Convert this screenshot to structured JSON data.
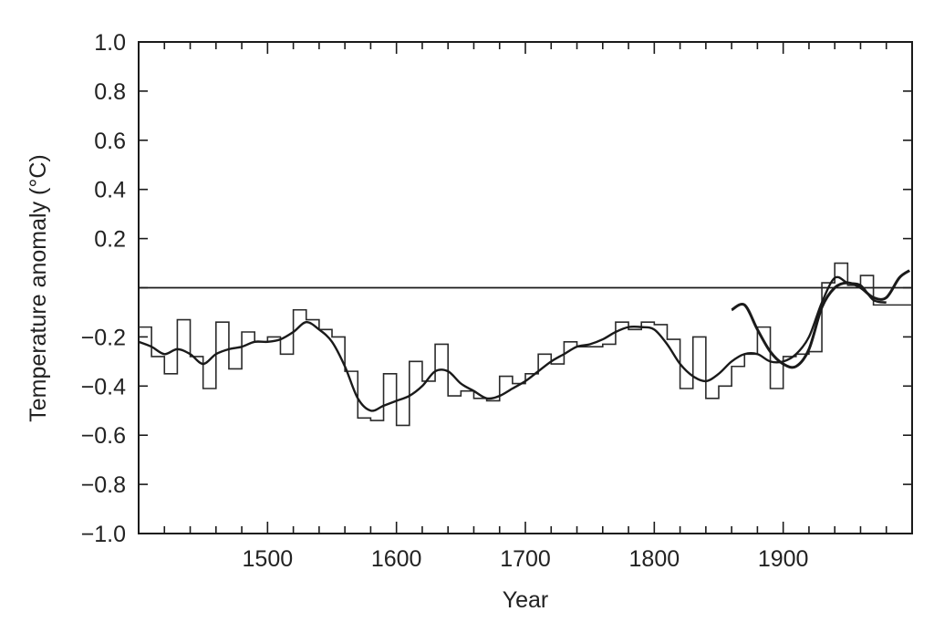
{
  "chart_data": {
    "type": "line",
    "xlabel": "Year",
    "ylabel": "Temperature anomaly (°C)",
    "xlim": [
      1400,
      2000
    ],
    "ylim": [
      -1.0,
      1.0
    ],
    "x_ticks": [
      1500,
      1600,
      1700,
      1800,
      1900
    ],
    "x_tick_labels": [
      "1500",
      "1600",
      "1700",
      "1800",
      "1900"
    ],
    "y_ticks": [
      1.0,
      0.8,
      0.6,
      0.4,
      0.2,
      -0.2,
      -0.4,
      -0.6,
      -0.8,
      -1.0
    ],
    "y_tick_labels": [
      "1.0",
      "0.8",
      "0.6",
      "0.4",
      "0.2",
      "−0.2",
      "−0.4",
      "−0.6",
      "−0.8",
      "−1.0"
    ],
    "reference_line": 0,
    "grid": false,
    "series": [
      {
        "style": "step",
        "values": [
          [
            1400,
            -0.16
          ],
          [
            1410,
            -0.28
          ],
          [
            1420,
            -0.35
          ],
          [
            1430,
            -0.13
          ],
          [
            1440,
            -0.28
          ],
          [
            1450,
            -0.41
          ],
          [
            1460,
            -0.14
          ],
          [
            1470,
            -0.33
          ],
          [
            1480,
            -0.18
          ],
          [
            1490,
            -0.22
          ],
          [
            1500,
            -0.2
          ],
          [
            1510,
            -0.27
          ],
          [
            1520,
            -0.09
          ],
          [
            1530,
            -0.13
          ],
          [
            1540,
            -0.17
          ],
          [
            1550,
            -0.2
          ],
          [
            1560,
            -0.34
          ],
          [
            1570,
            -0.53
          ],
          [
            1580,
            -0.54
          ],
          [
            1590,
            -0.35
          ],
          [
            1600,
            -0.56
          ],
          [
            1610,
            -0.3
          ],
          [
            1620,
            -0.38
          ],
          [
            1630,
            -0.23
          ],
          [
            1640,
            -0.44
          ],
          [
            1650,
            -0.42
          ],
          [
            1660,
            -0.45
          ],
          [
            1670,
            -0.46
          ],
          [
            1680,
            -0.36
          ],
          [
            1690,
            -0.39
          ],
          [
            1700,
            -0.35
          ],
          [
            1710,
            -0.27
          ],
          [
            1720,
            -0.31
          ],
          [
            1730,
            -0.22
          ],
          [
            1740,
            -0.24
          ],
          [
            1750,
            -0.24
          ],
          [
            1760,
            -0.23
          ],
          [
            1770,
            -0.14
          ],
          [
            1780,
            -0.17
          ],
          [
            1790,
            -0.14
          ],
          [
            1800,
            -0.15
          ],
          [
            1810,
            -0.21
          ],
          [
            1820,
            -0.41
          ],
          [
            1830,
            -0.2
          ],
          [
            1840,
            -0.45
          ],
          [
            1850,
            -0.4
          ],
          [
            1860,
            -0.32
          ],
          [
            1870,
            -0.27
          ],
          [
            1880,
            -0.16
          ],
          [
            1890,
            -0.41
          ],
          [
            1900,
            -0.28
          ],
          [
            1910,
            -0.27
          ],
          [
            1920,
            -0.26
          ],
          [
            1930,
            0.02
          ],
          [
            1940,
            0.1
          ],
          [
            1950,
            0.01
          ],
          [
            1960,
            0.05
          ],
          [
            1970,
            -0.07
          ],
          [
            1980,
            -0.07
          ],
          [
            1990,
            -0.07
          ]
        ]
      },
      {
        "style": "smooth",
        "values": [
          [
            1400,
            -0.22
          ],
          [
            1410,
            -0.24
          ],
          [
            1420,
            -0.27
          ],
          [
            1430,
            -0.25
          ],
          [
            1440,
            -0.27
          ],
          [
            1450,
            -0.31
          ],
          [
            1460,
            -0.27
          ],
          [
            1470,
            -0.25
          ],
          [
            1480,
            -0.24
          ],
          [
            1490,
            -0.22
          ],
          [
            1500,
            -0.22
          ],
          [
            1510,
            -0.21
          ],
          [
            1520,
            -0.18
          ],
          [
            1530,
            -0.14
          ],
          [
            1540,
            -0.17
          ],
          [
            1550,
            -0.22
          ],
          [
            1560,
            -0.32
          ],
          [
            1570,
            -0.45
          ],
          [
            1580,
            -0.5
          ],
          [
            1590,
            -0.48
          ],
          [
            1600,
            -0.46
          ],
          [
            1610,
            -0.44
          ],
          [
            1620,
            -0.4
          ],
          [
            1630,
            -0.34
          ],
          [
            1640,
            -0.34
          ],
          [
            1650,
            -0.39
          ],
          [
            1660,
            -0.42
          ],
          [
            1670,
            -0.45
          ],
          [
            1680,
            -0.44
          ],
          [
            1690,
            -0.41
          ],
          [
            1700,
            -0.38
          ],
          [
            1710,
            -0.34
          ],
          [
            1720,
            -0.3
          ],
          [
            1730,
            -0.27
          ],
          [
            1740,
            -0.24
          ],
          [
            1750,
            -0.23
          ],
          [
            1760,
            -0.21
          ],
          [
            1770,
            -0.18
          ],
          [
            1780,
            -0.16
          ],
          [
            1790,
            -0.16
          ],
          [
            1800,
            -0.17
          ],
          [
            1810,
            -0.23
          ],
          [
            1820,
            -0.31
          ],
          [
            1830,
            -0.36
          ],
          [
            1840,
            -0.38
          ],
          [
            1850,
            -0.35
          ],
          [
            1860,
            -0.3
          ],
          [
            1870,
            -0.27
          ],
          [
            1880,
            -0.27
          ],
          [
            1890,
            -0.3
          ],
          [
            1900,
            -0.3
          ],
          [
            1910,
            -0.27
          ],
          [
            1920,
            -0.2
          ],
          [
            1930,
            -0.06
          ],
          [
            1940,
            0.04
          ],
          [
            1950,
            0.02
          ],
          [
            1960,
            0.01
          ],
          [
            1970,
            -0.05
          ],
          [
            1980,
            -0.06
          ]
        ]
      },
      {
        "style": "smooth",
        "values": [
          [
            1860,
            -0.09
          ],
          [
            1870,
            -0.07
          ],
          [
            1880,
            -0.17
          ],
          [
            1890,
            -0.26
          ],
          [
            1900,
            -0.31
          ],
          [
            1910,
            -0.32
          ],
          [
            1920,
            -0.25
          ],
          [
            1930,
            -0.08
          ],
          [
            1940,
            0.0
          ],
          [
            1950,
            0.02
          ],
          [
            1960,
            0.0
          ],
          [
            1970,
            -0.04
          ],
          [
            1980,
            -0.04
          ],
          [
            1990,
            0.04
          ],
          [
            1998,
            0.07
          ]
        ]
      }
    ]
  }
}
